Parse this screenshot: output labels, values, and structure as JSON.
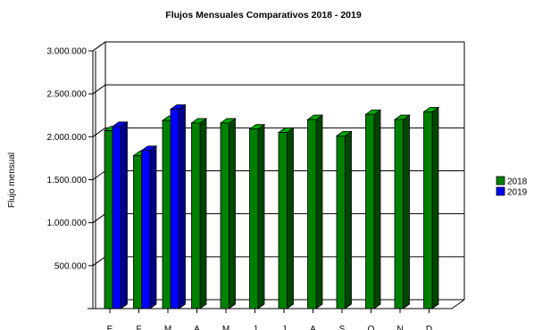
{
  "chart_data": {
    "type": "bar",
    "title": "Flujos Mensuales Comparativos 2018 - 2019",
    "ylabel": "Flujo mensual",
    "xlabel": "",
    "categories": [
      "E",
      "F",
      "M",
      "A",
      "M",
      "J",
      "J",
      "A",
      "S",
      "O",
      "N",
      "D"
    ],
    "series": [
      {
        "name": "2018",
        "color": "#008000",
        "values": [
          2070000,
          1780000,
          2190000,
          2160000,
          2160000,
          2090000,
          2050000,
          2200000,
          2010000,
          2260000,
          2200000,
          2290000
        ]
      },
      {
        "name": "2019",
        "color": "#0000ff",
        "values": [
          2120000,
          1840000,
          2320000,
          null,
          null,
          null,
          null,
          null,
          null,
          null,
          null,
          null
        ]
      }
    ],
    "yticks": [
      "500.000",
      "1.000.000",
      "1.500.000",
      "2.000.000",
      "2.500.000",
      "3.000.000"
    ],
    "ylim": [
      0,
      3000000
    ],
    "grid": true,
    "legend_position": "right",
    "style": "3d"
  }
}
